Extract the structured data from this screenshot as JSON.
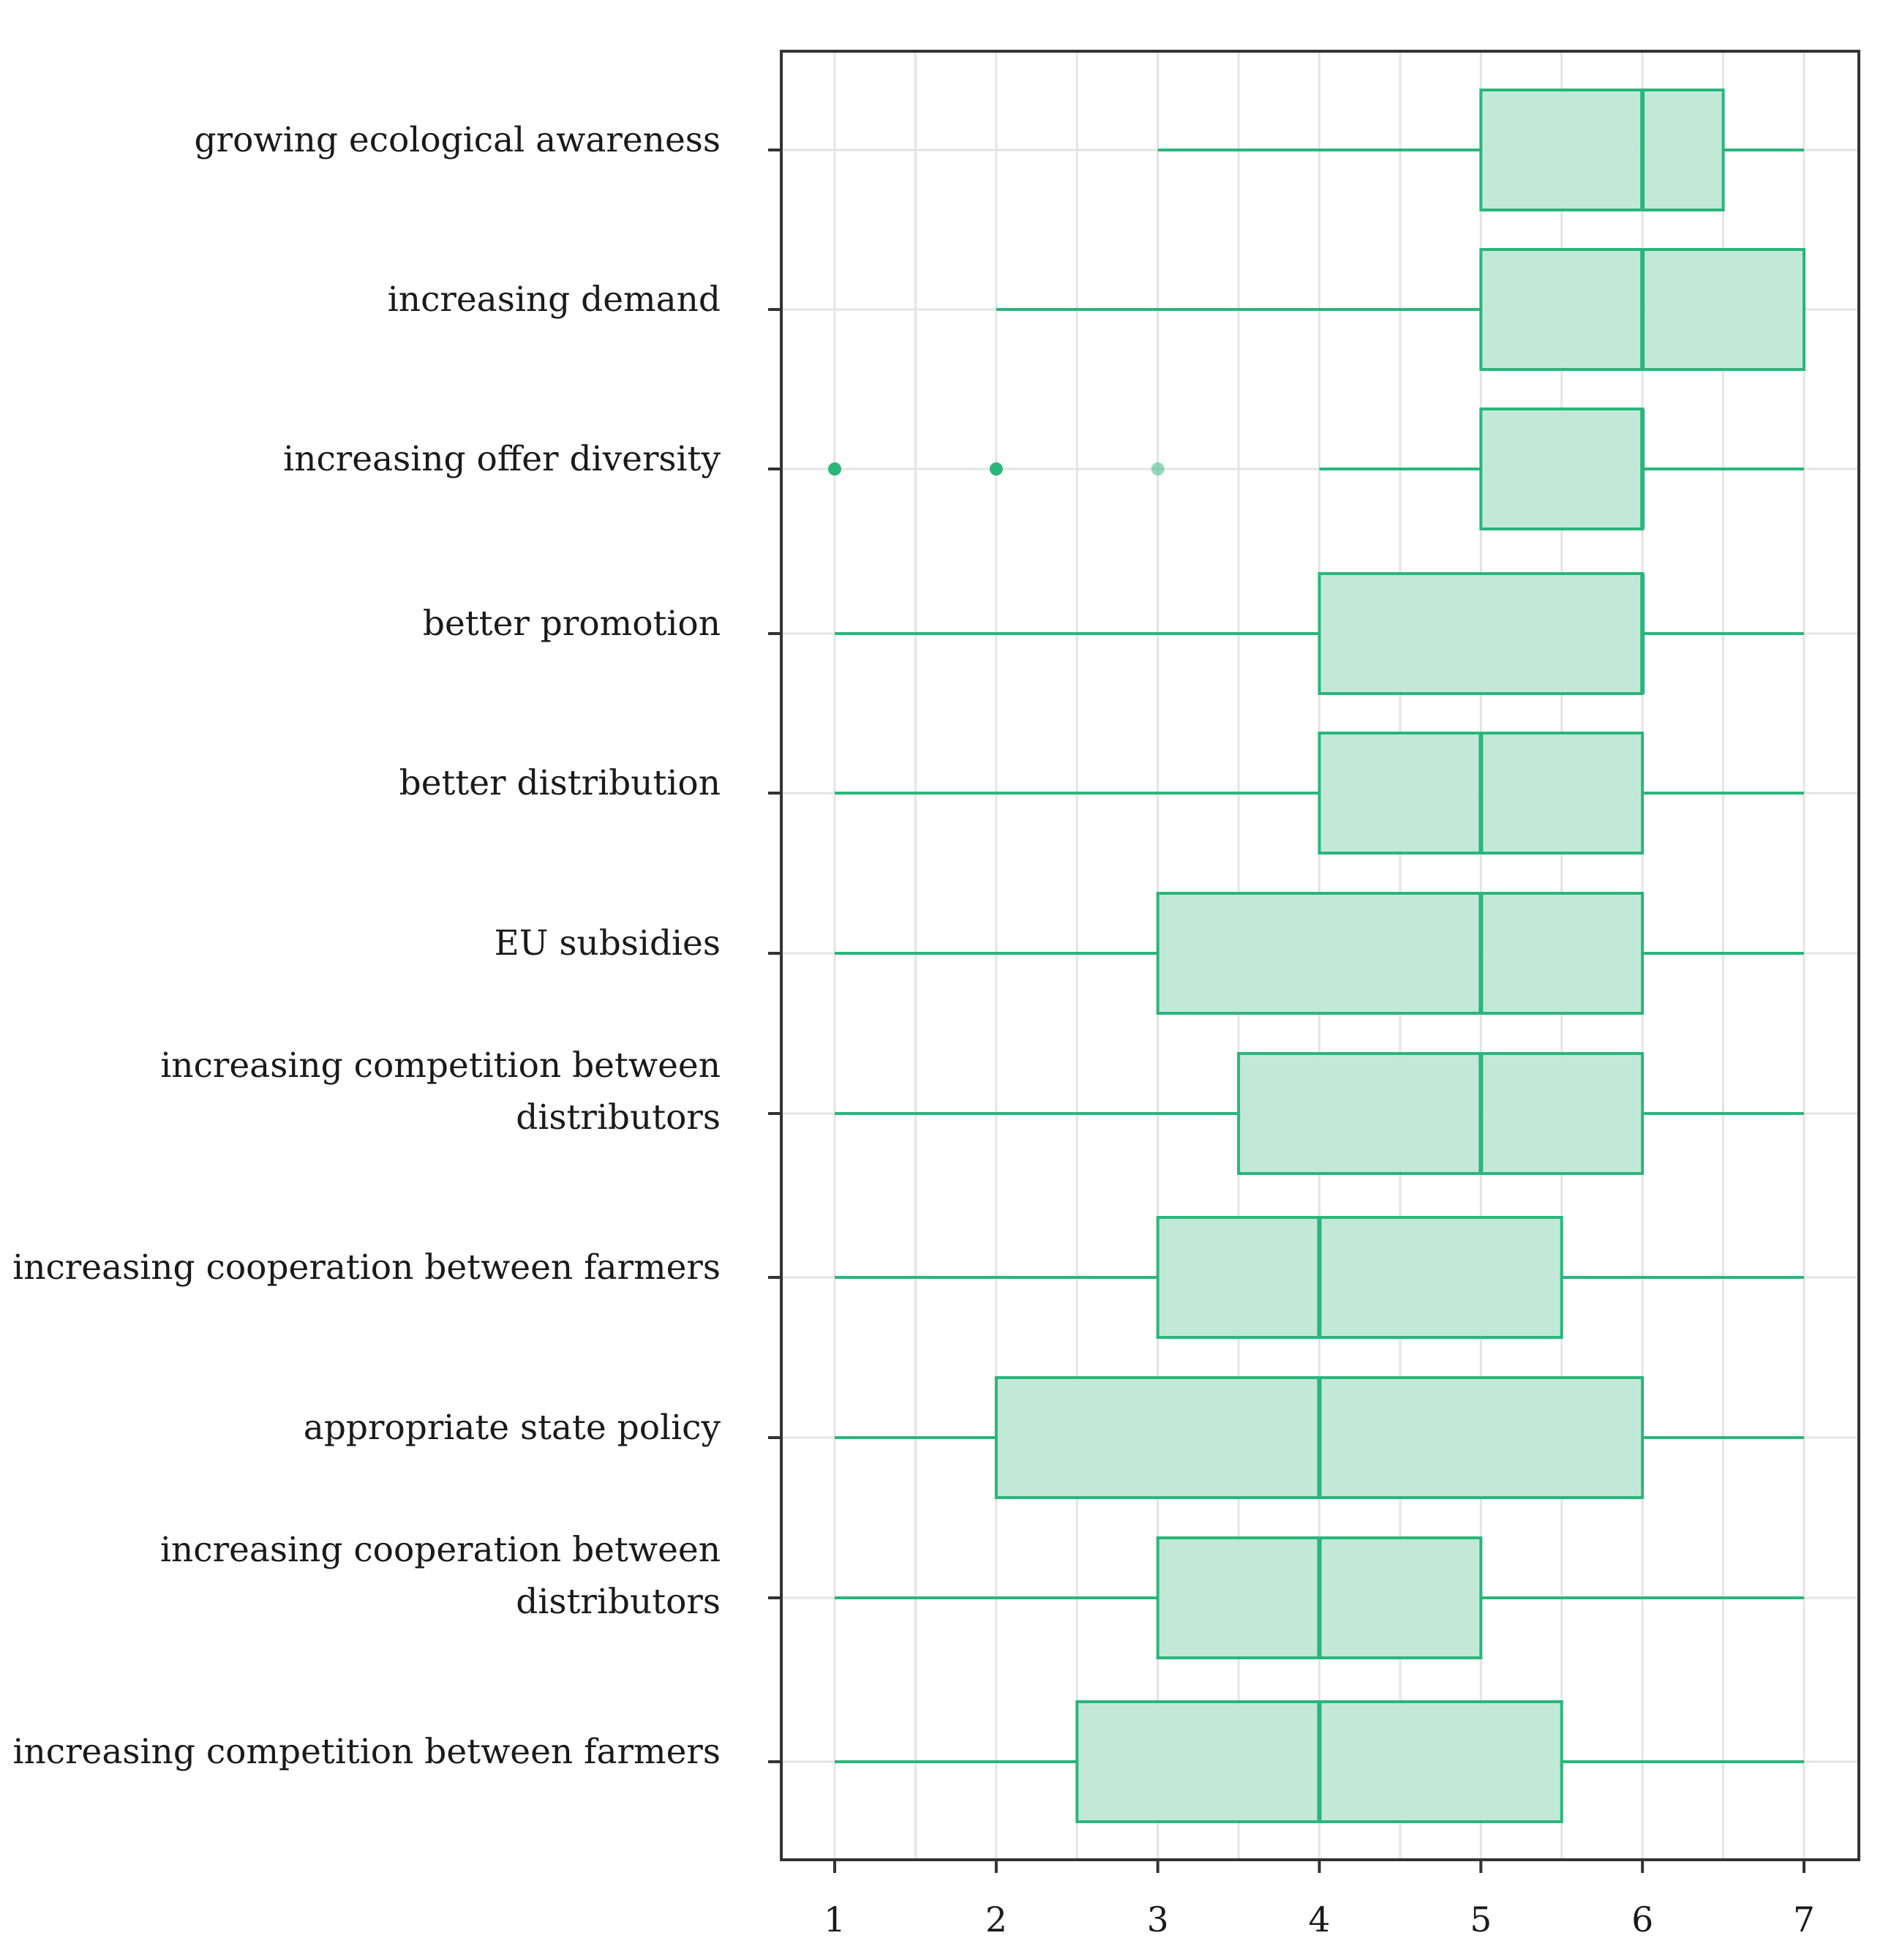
{
  "chart_data": {
    "type": "boxplot",
    "orientation": "horizontal",
    "title": "",
    "xlabel": "",
    "ylabel": "",
    "xlim": [
      0.7,
      7.3
    ],
    "xticks": [
      1,
      2,
      3,
      4,
      5,
      6,
      7
    ],
    "grid": true,
    "legend": "none",
    "colors": {
      "box_fill": "#bfe8d6",
      "box_stroke": "#2bb57b",
      "grid": "#e4e4e4",
      "frame": "#333333"
    },
    "categories": [
      {
        "label_lines": [
          "growing ecological awareness"
        ],
        "whisker_low": 3,
        "q1": 5,
        "median": 6,
        "q3": 6.5,
        "whisker_high": 7,
        "outliers": []
      },
      {
        "label_lines": [
          "increasing demand"
        ],
        "whisker_low": 2,
        "q1": 5,
        "median": 6,
        "q3": 7,
        "whisker_high": 7,
        "outliers": []
      },
      {
        "label_lines": [
          "increasing offer diversity"
        ],
        "whisker_low": 4,
        "q1": 5,
        "median": 6,
        "q3": 6,
        "whisker_high": 7,
        "outliers": [
          1,
          2,
          3
        ]
      },
      {
        "label_lines": [
          "better promotion"
        ],
        "whisker_low": 1,
        "q1": 4,
        "median": 6,
        "q3": 6,
        "whisker_high": 7,
        "outliers": []
      },
      {
        "label_lines": [
          "better distribution"
        ],
        "whisker_low": 1,
        "q1": 4,
        "median": 5,
        "q3": 6,
        "whisker_high": 7,
        "outliers": []
      },
      {
        "label_lines": [
          "EU subsidies"
        ],
        "whisker_low": 1,
        "q1": 3,
        "median": 5,
        "q3": 6,
        "whisker_high": 7,
        "outliers": []
      },
      {
        "label_lines": [
          "increasing competition between",
          "distributors"
        ],
        "whisker_low": 1,
        "q1": 3.5,
        "median": 5,
        "q3": 6,
        "whisker_high": 7,
        "outliers": []
      },
      {
        "label_lines": [
          "increasing cooperation between farmers"
        ],
        "whisker_low": 1,
        "q1": 3,
        "median": 4,
        "q3": 5.5,
        "whisker_high": 7,
        "outliers": []
      },
      {
        "label_lines": [
          "appropriate state policy"
        ],
        "whisker_low": 1,
        "q1": 2,
        "median": 4,
        "q3": 6,
        "whisker_high": 7,
        "outliers": []
      },
      {
        "label_lines": [
          "increasing cooperation between",
          "distributors"
        ],
        "whisker_low": 1,
        "q1": 3,
        "median": 4,
        "q3": 5,
        "whisker_high": 7,
        "outliers": []
      },
      {
        "label_lines": [
          "increasing competition between farmers"
        ],
        "whisker_low": 1,
        "q1": 2.5,
        "median": 4,
        "q3": 5.5,
        "whisker_high": 7,
        "outliers": []
      }
    ]
  }
}
